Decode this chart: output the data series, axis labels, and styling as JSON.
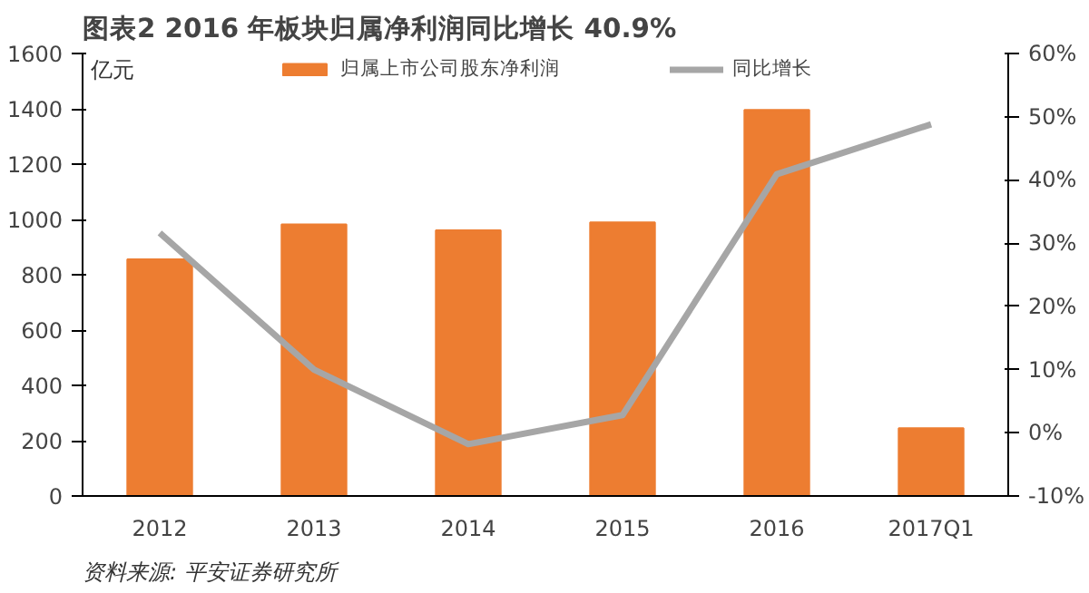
{
  "chart_data": {
    "type": "bar",
    "title": "图表2    2016 年板块归属净利润同比增长 40.9%",
    "ylabel": "亿元",
    "categories": [
      "2012",
      "2013",
      "2014",
      "2015",
      "2016",
      "2017Q1"
    ],
    "series": [
      {
        "name": "归属上市公司股东净利润",
        "color": "#ed7d31",
        "values": [
          856,
          982,
          961,
          989,
          1396,
          245
        ]
      },
      {
        "name": "同比增长",
        "type": "line",
        "axis": "y2",
        "color": "#a6a6a6",
        "values": [
          31.6,
          10,
          -1.8,
          2.8,
          40.9,
          48.8
        ]
      }
    ],
    "ylim": [
      0,
      1600
    ],
    "yticks": [
      0,
      200,
      400,
      600,
      800,
      1000,
      1200,
      1400,
      1600
    ],
    "y2lim": [
      -10,
      60
    ],
    "y2ticks": [
      {
        "value": -10,
        "label": "-10%"
      },
      {
        "value": 0,
        "label": "0%"
      },
      {
        "value": 10,
        "label": "10%"
      },
      {
        "value": 20,
        "label": "20%"
      },
      {
        "value": 30,
        "label": "30%"
      },
      {
        "value": 40,
        "label": "40%"
      },
      {
        "value": 50,
        "label": "50%"
      },
      {
        "value": 60,
        "label": "60%"
      }
    ],
    "legend": "top",
    "grid": false,
    "marker": "none",
    "annotations": [
      "资料来源: 平安证券研究所"
    ]
  }
}
